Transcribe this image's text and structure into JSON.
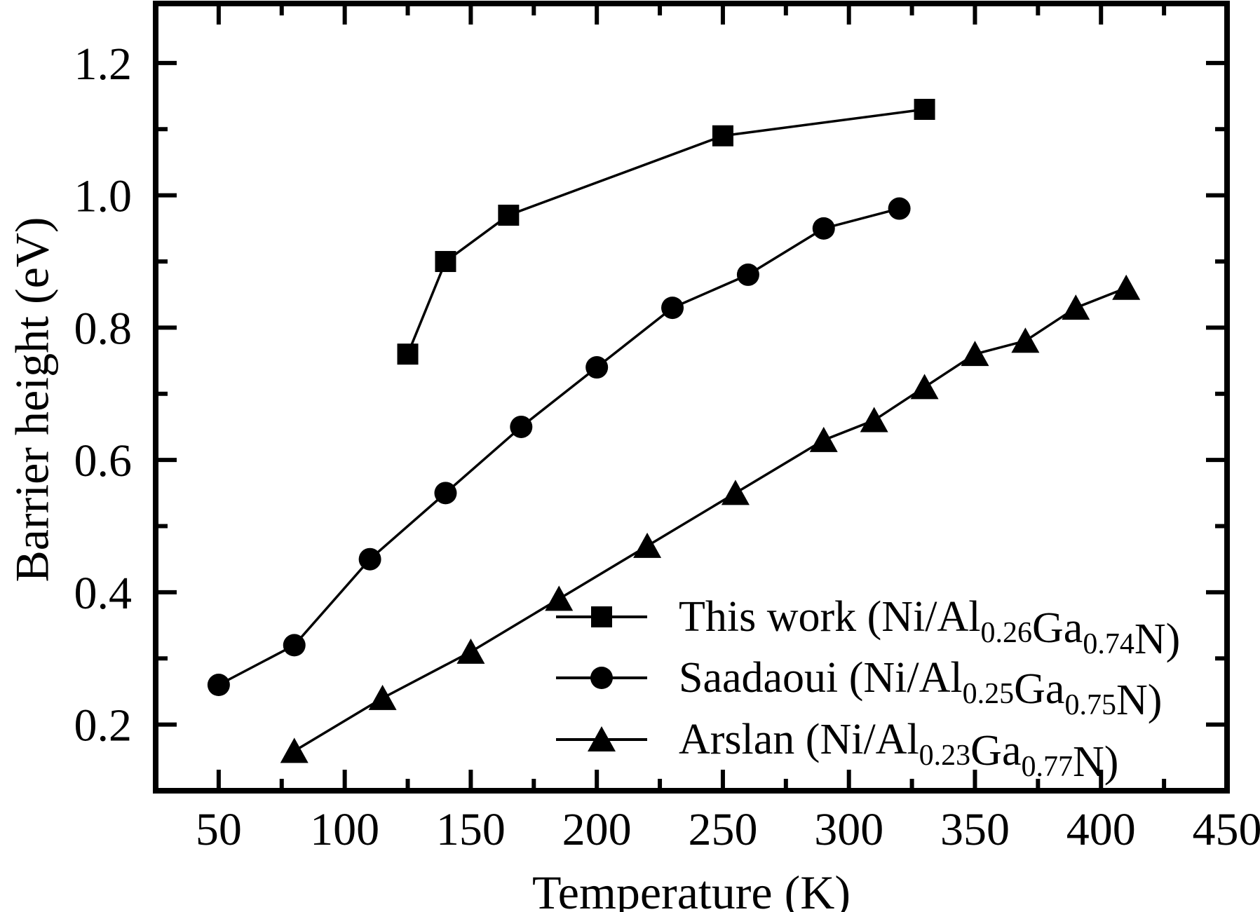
{
  "figure": {
    "background_color": "#ffffff",
    "foreground_color": "#000000"
  },
  "chart_data": {
    "type": "line",
    "title": "",
    "xlabel": "Temperature (K)",
    "ylabel": "Barrier height (eV)",
    "xlim": [
      25,
      450
    ],
    "ylim": [
      0.1,
      1.29
    ],
    "grid": false,
    "legend_position": "inside lower right",
    "x_major_ticks": [
      50,
      100,
      150,
      200,
      250,
      300,
      350,
      400,
      450
    ],
    "x_major_tick_labels": [
      "50",
      "100",
      "150",
      "200",
      "250",
      "300",
      "350",
      "400",
      "450"
    ],
    "x_minor_ticks": [
      75,
      125,
      175,
      225,
      275,
      325,
      375,
      425
    ],
    "y_major_ticks": [
      0.2,
      0.4,
      0.6,
      0.8,
      1.0,
      1.2
    ],
    "y_major_tick_labels": [
      "0.2",
      "0.4",
      "0.6",
      "0.8",
      "1.0",
      "1.2"
    ],
    "y_minor_ticks": [
      0.3,
      0.5,
      0.7,
      0.9,
      1.1
    ],
    "series": [
      {
        "name": "This work (Ni/Al0.26Ga0.74N)",
        "marker": "square",
        "color": "#000000",
        "label_parts": [
          [
            "t",
            "This work (Ni/Al"
          ],
          [
            "s",
            "0.26"
          ],
          [
            "t",
            "Ga"
          ],
          [
            "s",
            "0.74"
          ],
          [
            "t",
            "N)"
          ]
        ],
        "x": [
          125,
          140,
          165,
          250,
          330
        ],
        "y": [
          0.76,
          0.9,
          0.97,
          1.09,
          1.13
        ]
      },
      {
        "name": "Saadaoui (Ni/Al0.25Ga0.75N)",
        "marker": "circle",
        "color": "#000000",
        "label_parts": [
          [
            "t",
            "Saadaoui (Ni/Al"
          ],
          [
            "s",
            "0.25"
          ],
          [
            "t",
            "Ga"
          ],
          [
            "s",
            "0.75"
          ],
          [
            "t",
            "N)"
          ]
        ],
        "x": [
          50,
          80,
          110,
          140,
          170,
          200,
          230,
          260,
          290,
          320
        ],
        "y": [
          0.26,
          0.32,
          0.45,
          0.55,
          0.65,
          0.74,
          0.83,
          0.88,
          0.95,
          0.98
        ]
      },
      {
        "name": "Arslan (Ni/Al0.23Ga0.77N)",
        "marker": "triangle",
        "color": "#000000",
        "label_parts": [
          [
            "t",
            "Arslan (Ni/Al"
          ],
          [
            "s",
            "0.23"
          ],
          [
            "t",
            "Ga"
          ],
          [
            "s",
            "0.77"
          ],
          [
            "t",
            "N)"
          ]
        ],
        "x": [
          80,
          115,
          150,
          185,
          220,
          255,
          290,
          310,
          330,
          350,
          370,
          390,
          410
        ],
        "y": [
          0.16,
          0.24,
          0.31,
          0.39,
          0.47,
          0.55,
          0.63,
          0.66,
          0.71,
          0.76,
          0.78,
          0.83,
          0.86
        ]
      }
    ]
  }
}
